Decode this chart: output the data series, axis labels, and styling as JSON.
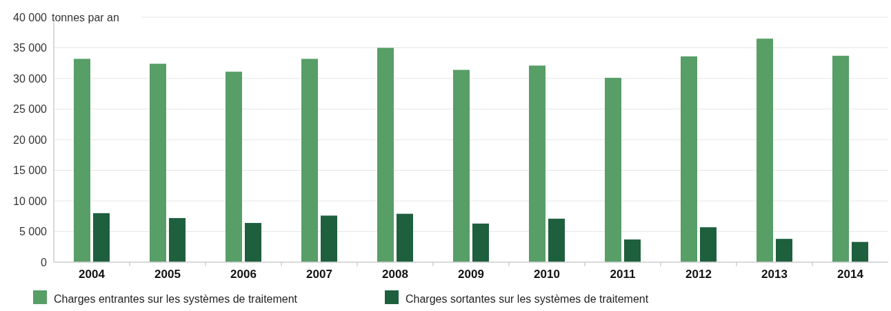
{
  "chart_data": {
    "type": "bar",
    "categories": [
      "2004",
      "2005",
      "2006",
      "2007",
      "2008",
      "2009",
      "2010",
      "2011",
      "2012",
      "2013",
      "2014"
    ],
    "series": [
      {
        "name": "Charges entrantes sur les systèmes de traitement",
        "color": "#579e67",
        "values": [
          33200,
          32400,
          31100,
          33200,
          35000,
          31400,
          32100,
          30100,
          33600,
          36500,
          33700
        ]
      },
      {
        "name": "Charges sortantes sur les systèmes de traitement",
        "color": "#1e5f3e",
        "values": [
          8000,
          7200,
          6400,
          7600,
          7900,
          6300,
          7100,
          3700,
          5700,
          3800,
          3300
        ]
      }
    ],
    "ylim": [
      0,
      40000
    ],
    "yticks": [
      {
        "value": 0,
        "label": "0"
      },
      {
        "value": 5000,
        "label": "5 000"
      },
      {
        "value": 10000,
        "label": "10 000"
      },
      {
        "value": 15000,
        "label": "15 000"
      },
      {
        "value": 20000,
        "label": "20 000"
      },
      {
        "value": 25000,
        "label": "25 000"
      },
      {
        "value": 30000,
        "label": "30 000"
      },
      {
        "value": 35000,
        "label": "35 000"
      },
      {
        "value": 40000,
        "label": "40 000"
      }
    ],
    "ylabel": "tonnes par an",
    "grid": "y",
    "legend": "bottom"
  }
}
